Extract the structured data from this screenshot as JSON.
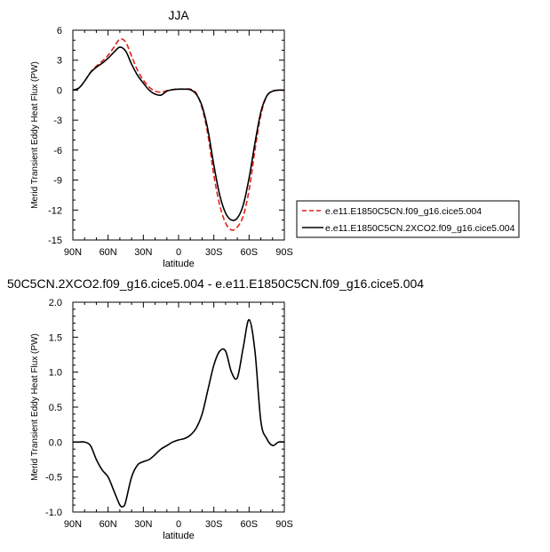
{
  "chart_data": [
    {
      "type": "line",
      "title": "JJA",
      "xlabel": "latitude",
      "ylabel": "Merid Transient Eddy Heat Flux (PW)",
      "xlim": [
        -90,
        90
      ],
      "ylim": [
        -15,
        6
      ],
      "x_ticks": [
        -90,
        -60,
        -30,
        0,
        30,
        60,
        90
      ],
      "x_tick_labels": [
        "90N",
        "60N",
        "30N",
        "0",
        "30S",
        "60S",
        "90S"
      ],
      "y_ticks": [
        6,
        3,
        0,
        -3,
        -6,
        -9,
        -12,
        -15
      ],
      "y_tick_labels": [
        "6",
        "3",
        "0",
        "-3",
        "-6",
        "-9",
        "-12",
        "-15"
      ],
      "grid": false,
      "legend_position": "right",
      "x": [
        -90,
        -85,
        -80,
        -75,
        -70,
        -65,
        -60,
        -55,
        -50,
        -45,
        -40,
        -35,
        -30,
        -25,
        -20,
        -15,
        -10,
        -5,
        0,
        5,
        10,
        15,
        20,
        25,
        30,
        35,
        40,
        45,
        50,
        55,
        60,
        65,
        70,
        75,
        80,
        85,
        90
      ],
      "series": [
        {
          "name": "e.e11.E1850C5CN.f09_g16.cice5.004",
          "color": "#e0201a",
          "dash": "dashed",
          "values": [
            0.0,
            0.2,
            0.9,
            1.8,
            2.4,
            2.9,
            3.5,
            4.3,
            5.1,
            4.8,
            3.4,
            2.0,
            1.0,
            0.3,
            -0.1,
            -0.2,
            -0.05,
            0.05,
            0.1,
            0.1,
            0.1,
            -0.3,
            -1.8,
            -4.5,
            -8.5,
            -11.5,
            -13.3,
            -14.0,
            -13.7,
            -12.6,
            -10.0,
            -6.0,
            -2.5,
            -0.6,
            -0.1,
            0.0,
            0.0
          ]
        },
        {
          "name": "e.e11.E1850C5CN.2XCO2.f09_g16.cice5.004",
          "color": "#000000",
          "dash": "solid",
          "values": [
            0.0,
            0.2,
            0.9,
            1.75,
            2.3,
            2.7,
            3.2,
            3.8,
            4.3,
            3.9,
            2.6,
            1.5,
            0.7,
            0.0,
            -0.4,
            -0.5,
            -0.1,
            0.05,
            0.1,
            0.1,
            0.05,
            -0.4,
            -1.6,
            -4.0,
            -7.5,
            -10.5,
            -12.3,
            -13.0,
            -12.8,
            -11.5,
            -8.8,
            -5.3,
            -2.2,
            -0.6,
            -0.1,
            0.0,
            0.0
          ]
        }
      ]
    },
    {
      "type": "line",
      "title": "50C5CN.2XCO2.f09_g16.cice5.004 - e.e11.E1850C5CN.f09_g16.cice5.004",
      "xlabel": "latitude",
      "ylabel": "Merid Transient Eddy Heat Flux (PW)",
      "xlim": [
        -90,
        90
      ],
      "ylim": [
        -1.0,
        2.0
      ],
      "x_ticks": [
        -90,
        -60,
        -30,
        0,
        30,
        60,
        90
      ],
      "x_tick_labels": [
        "90N",
        "60N",
        "30N",
        "0",
        "30S",
        "60S",
        "90S"
      ],
      "y_ticks": [
        2.0,
        1.5,
        1.0,
        0.5,
        0.0,
        -0.5,
        -1.0
      ],
      "y_tick_labels": [
        "2.0",
        "1.5",
        "1.0",
        "0.5",
        "0.0",
        "-0.5",
        "-1.0"
      ],
      "grid": false,
      "x": [
        -90,
        -85,
        -80,
        -75,
        -70,
        -65,
        -60,
        -55,
        -50,
        -47,
        -45,
        -40,
        -35,
        -30,
        -25,
        -20,
        -15,
        -10,
        -5,
        0,
        5,
        10,
        15,
        20,
        25,
        30,
        35,
        40,
        45,
        50,
        55,
        60,
        65,
        70,
        75,
        80,
        85,
        90
      ],
      "series": [
        {
          "color": "#000000",
          "dash": "solid",
          "values": [
            0.0,
            0.0,
            0.0,
            -0.05,
            -0.25,
            -0.4,
            -0.5,
            -0.7,
            -0.9,
            -0.92,
            -0.85,
            -0.5,
            -0.33,
            -0.28,
            -0.25,
            -0.18,
            -0.1,
            -0.05,
            0.0,
            0.03,
            0.05,
            0.1,
            0.2,
            0.4,
            0.75,
            1.1,
            1.3,
            1.3,
            1.0,
            0.92,
            1.35,
            1.75,
            1.3,
            0.3,
            0.05,
            -0.05,
            0.0,
            0.0
          ]
        }
      ]
    }
  ]
}
